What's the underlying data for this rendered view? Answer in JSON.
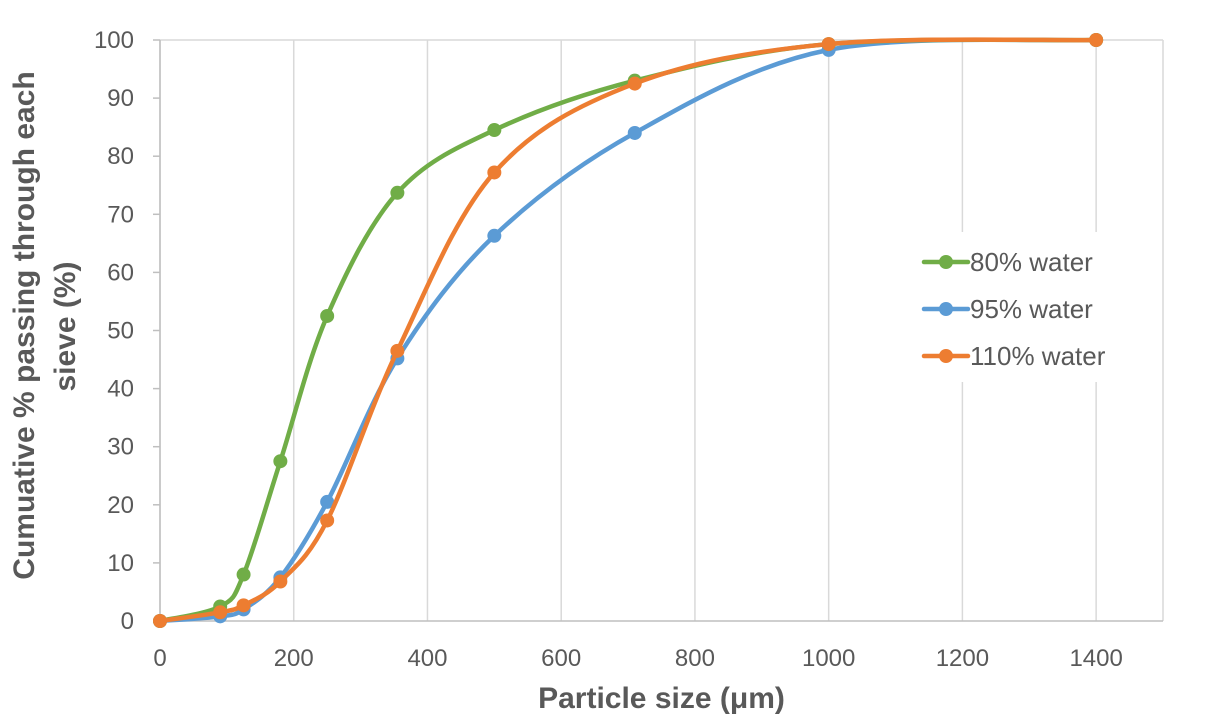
{
  "chart_data": {
    "type": "line",
    "title": "",
    "xlabel": "Particle size (μm)",
    "ylabel_lines": [
      "Cumuative % passing through each",
      "sieve (%)"
    ],
    "xlim": [
      0,
      1500
    ],
    "ylim": [
      0,
      100
    ],
    "x_ticks": [
      0,
      200,
      400,
      600,
      800,
      1000,
      1200,
      1400
    ],
    "y_ticks": [
      0,
      10,
      20,
      30,
      40,
      50,
      60,
      70,
      80,
      90,
      100
    ],
    "grid": "vertical",
    "legend_position": "right",
    "series": [
      {
        "name": "80% water",
        "color": "#70AD47",
        "points": [
          [
            0,
            0
          ],
          [
            90,
            2.5
          ],
          [
            125,
            8
          ],
          [
            180,
            27.5
          ],
          [
            250,
            52.5
          ],
          [
            355,
            73.7
          ],
          [
            500,
            84.5
          ],
          [
            710,
            93
          ],
          [
            1000,
            99.3
          ],
          [
            1400,
            100
          ]
        ]
      },
      {
        "name": "95% water",
        "color": "#5B9BD5",
        "points": [
          [
            0,
            0
          ],
          [
            90,
            0.8
          ],
          [
            125,
            2
          ],
          [
            180,
            7.5
          ],
          [
            250,
            20.5
          ],
          [
            355,
            45.2
          ],
          [
            500,
            66.3
          ],
          [
            710,
            84
          ],
          [
            1000,
            98.3
          ],
          [
            1400,
            100
          ]
        ]
      },
      {
        "name": "110% water",
        "color": "#ED7D31",
        "points": [
          [
            0,
            0
          ],
          [
            90,
            1.5
          ],
          [
            125,
            2.7
          ],
          [
            180,
            6.8
          ],
          [
            250,
            17.3
          ],
          [
            355,
            46.5
          ],
          [
            500,
            77.2
          ],
          [
            710,
            92.5
          ],
          [
            1000,
            99.3
          ],
          [
            1400,
            100
          ]
        ]
      }
    ]
  }
}
